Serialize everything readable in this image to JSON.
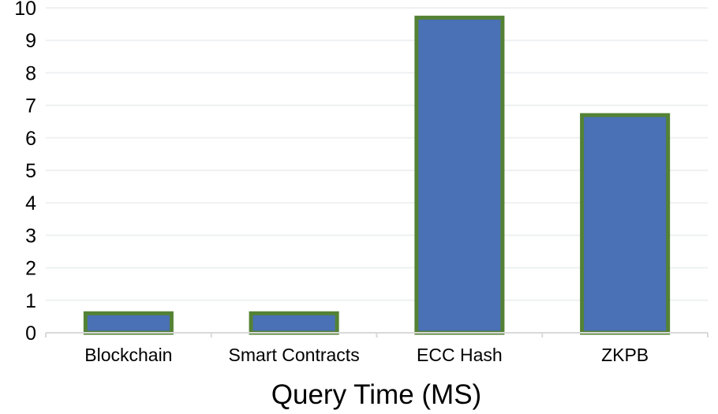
{
  "chart_data": {
    "type": "bar",
    "title": "Query Time (MS)",
    "xlabel": "Query Time (MS)",
    "ylabel": "",
    "categories": [
      "Blockchain",
      "Smart Contracts",
      "ECC Hash",
      "ZKPB"
    ],
    "values": [
      0.6,
      0.6,
      9.7,
      6.7
    ],
    "ylim": [
      0,
      10
    ],
    "yticks": [
      "0",
      "1",
      "2",
      "3",
      "4",
      "5",
      "6",
      "7",
      "8",
      "9",
      "10"
    ],
    "grid": true,
    "legend": "none",
    "colors": {
      "fill": "#4a70b5",
      "stroke": "#548235",
      "grid": "#eef0f2",
      "axis": "#d9d9d9"
    }
  }
}
